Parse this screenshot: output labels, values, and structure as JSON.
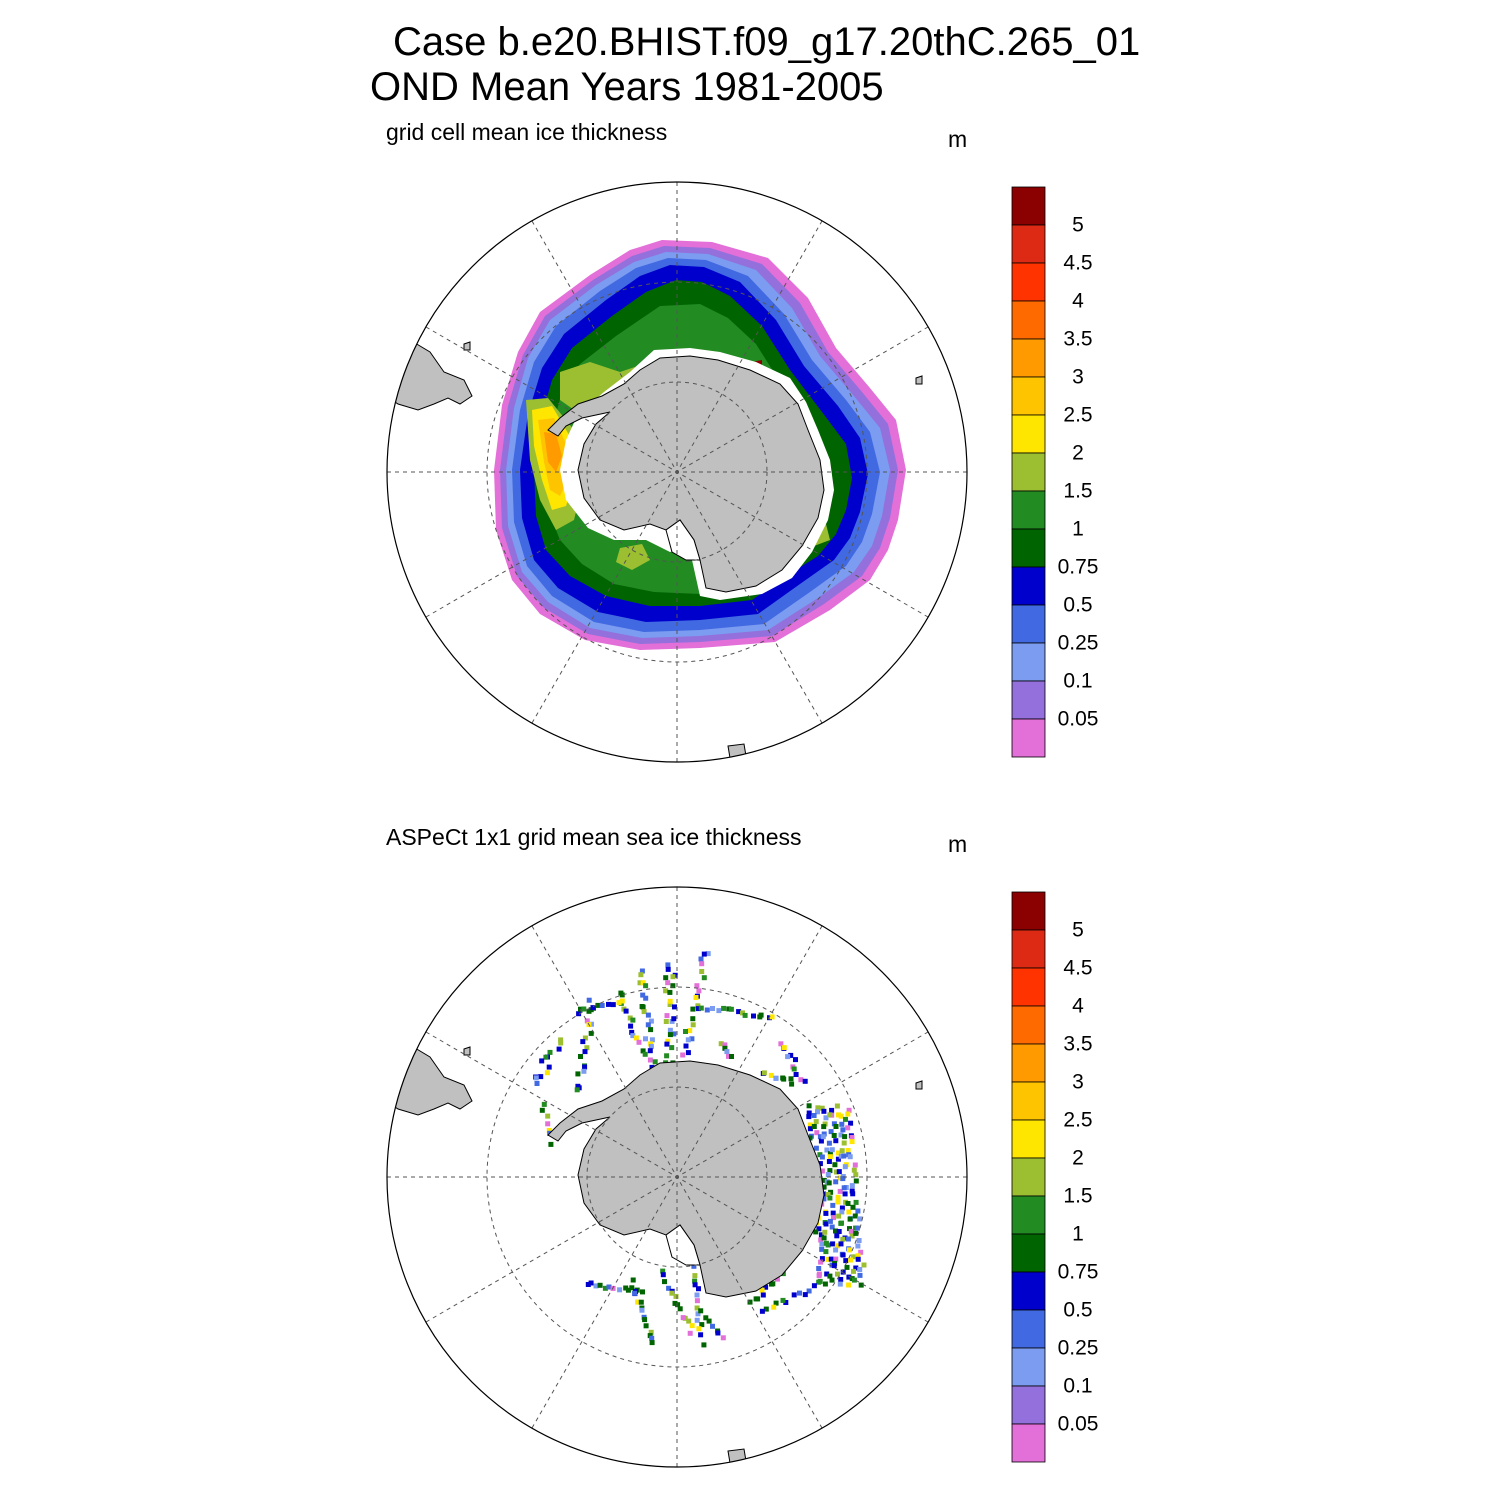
{
  "figure": {
    "title_line1": "Case b.e20.BHIST.f09_g17.20thC.265_01",
    "title_line2": "OND Mean   Years 1981-2005"
  },
  "colorbar": {
    "labels": [
      "5",
      "4.5",
      "4",
      "3.5",
      "3",
      "2.5",
      "2",
      "1.5",
      "1",
      "0.75",
      "0.5",
      "0.25",
      "0.1",
      "0.05"
    ],
    "colors": [
      "#8b0000",
      "#dc2a14",
      "#ff3300",
      "#ff6a00",
      "#ff9a00",
      "#ffc400",
      "#ffe600",
      "#9cbf32",
      "#228b22",
      "#006400",
      "#0000cd",
      "#4169e1",
      "#7b9cf0",
      "#9370db",
      "#e36fd8"
    ]
  },
  "land_color": "#c0c0c0",
  "panels": [
    {
      "id": "model",
      "subtitle": "grid cell mean ice thickness",
      "units": "m"
    },
    {
      "id": "obs",
      "subtitle": "ASPeCt 1x1 grid mean sea ice thickness",
      "units": "m"
    }
  ]
}
